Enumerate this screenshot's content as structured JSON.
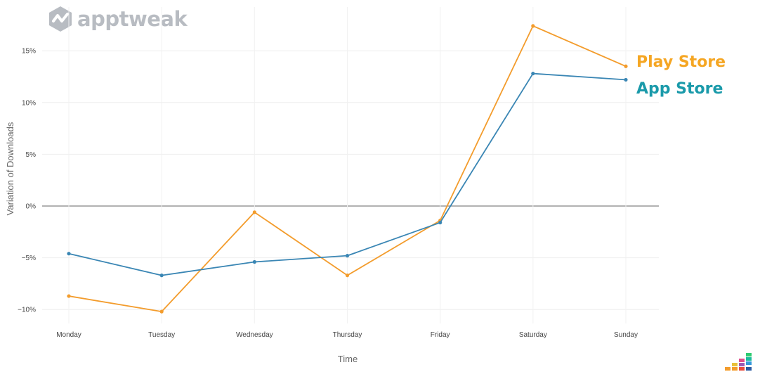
{
  "logo": {
    "text": "apptweak",
    "icon": "apptweak-hexagon-icon"
  },
  "chart_data": {
    "type": "line",
    "categories": [
      "Monday",
      "Tuesday",
      "Wednesday",
      "Thursday",
      "Friday",
      "Saturday",
      "Sunday"
    ],
    "series": [
      {
        "name": "Play Store",
        "color": "#f39c2c",
        "values": [
          -8.7,
          -10.2,
          -0.6,
          -6.7,
          -1.4,
          17.4,
          13.5
        ]
      },
      {
        "name": "App Store",
        "color": "#3a86b4",
        "values": [
          -4.6,
          -6.7,
          -5.4,
          -4.8,
          -1.6,
          12.8,
          12.2
        ]
      }
    ],
    "legend_colors": {
      "Play Store": "#f5a623",
      "App Store": "#1a9aaa"
    },
    "xlabel": "Time",
    "ylabel": "Variation of Downloads",
    "ylim": [
      -11,
      19
    ],
    "yticks": [
      -10,
      -5,
      0,
      5,
      10,
      15
    ],
    "ytick_labels": [
      "−10%",
      "−5%",
      "0%",
      "5%",
      "10%",
      "15%"
    ],
    "grid": true,
    "legend_placement": "right, at line ends"
  },
  "corner_logo": {
    "icon": "equalizer-bars-icon"
  }
}
